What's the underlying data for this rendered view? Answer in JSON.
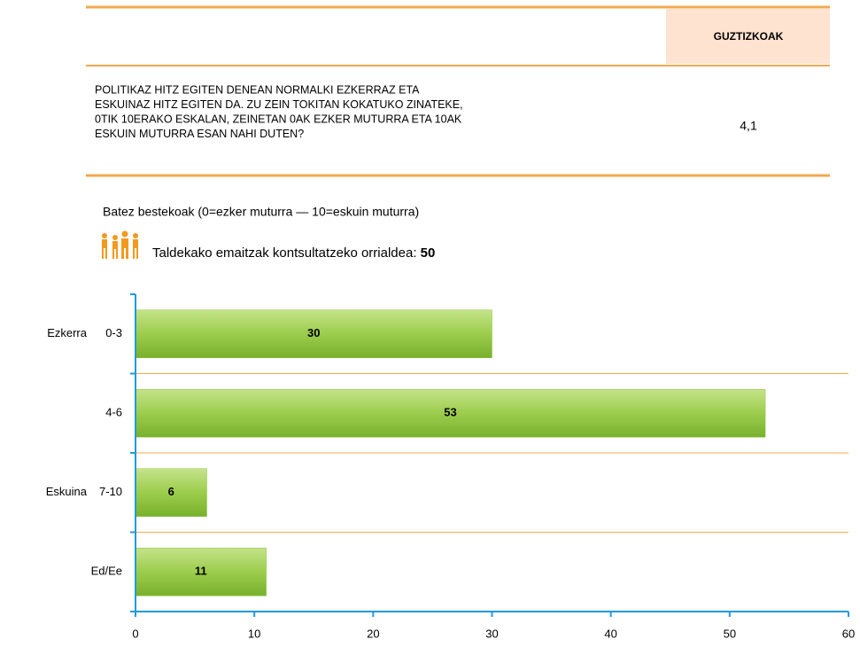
{
  "table": {
    "header": "GUZTIZKOAK",
    "question_lines": [
      "POLITIKAZ HITZ EGITEN DENEAN NORMALKI EZKERRAZ ETA",
      "ESKUINAZ HITZ EGITEN DA. ZU ZEIN TOKITAN KOKATUKO ZINATEKE,",
      "0TIK 10ERAKO ESKALAN, ZEINETAN 0AK EZKER MUTURRA ETA 10AK",
      "ESKUIN MUTURRA ESAN NAHI DUTEN?"
    ],
    "value": "4,1"
  },
  "subtitle": "Batez bestekoak (0=ezker muturra — 10=eskuin muturra)",
  "note": {
    "text": "Taldekako emaitzak kontsultatzeko orrialdea:",
    "page": 50
  },
  "chart_data": {
    "type": "hbar",
    "categories": [
      "0-3",
      "4-6",
      "7-10",
      "Ed/Ee"
    ],
    "group_labels": [
      "Ezkerra",
      null,
      "Eskuina",
      null
    ],
    "values": [
      30,
      53,
      6,
      11
    ],
    "color": "#8dc63f",
    "xlim": [
      0,
      60
    ],
    "xticks": [
      0,
      10,
      20,
      30,
      40,
      50,
      60
    ]
  }
}
